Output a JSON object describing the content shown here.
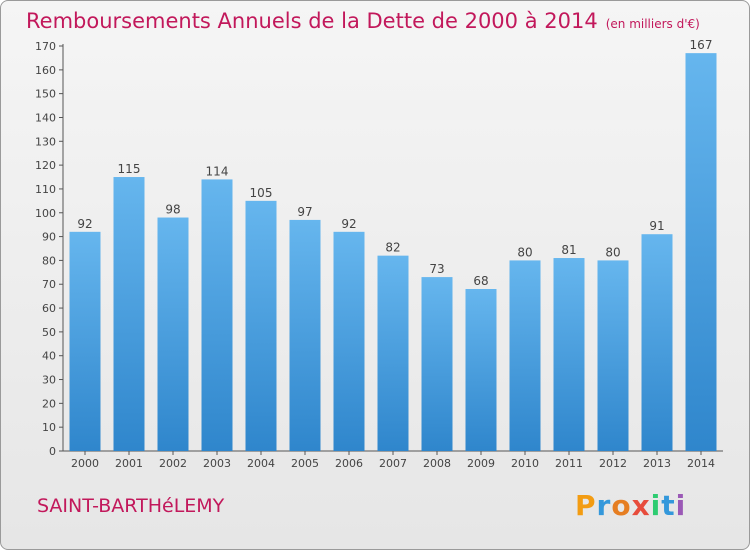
{
  "title": "Remboursements Annuels de la Dette de 2000 à 2014",
  "title_unit": "(en milliers d'€)",
  "commune": "SAINT-BARTHéLEMY",
  "logo": {
    "text": "Proxiti",
    "letters": [
      "P",
      "r",
      "o",
      "x",
      "i",
      "t",
      "i"
    ],
    "colors": [
      "#f39c12",
      "#3498db",
      "#e67e22",
      "#e74c3c",
      "#2ecc71",
      "#3498db",
      "#9b59b6"
    ]
  },
  "colors": {
    "title": "#c2185b",
    "bar_top": "#66b6ee",
    "bar_bottom": "#2f86cc"
  },
  "chart_data": {
    "type": "bar",
    "title": "Remboursements Annuels de la Dette de 2000 à 2014",
    "categories": [
      "2000",
      "2001",
      "2002",
      "2003",
      "2004",
      "2005",
      "2006",
      "2007",
      "2008",
      "2009",
      "2010",
      "2011",
      "2012",
      "2013",
      "2014"
    ],
    "values": [
      92,
      115,
      98,
      114,
      105,
      97,
      92,
      82,
      73,
      68,
      80,
      81,
      80,
      91,
      167
    ],
    "ylim": [
      0,
      170
    ],
    "ytick_step": 10,
    "grid": false,
    "legend": "none"
  }
}
